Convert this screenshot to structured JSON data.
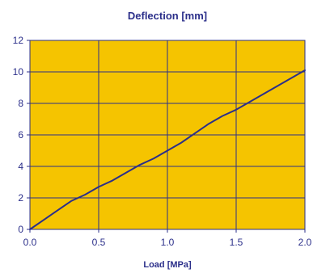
{
  "chart_data": {
    "type": "line",
    "title": "Deflection [mm]",
    "xlabel": "Load [MPa]",
    "ylabel": "",
    "xlim": [
      0,
      2.0
    ],
    "ylim": [
      0,
      12
    ],
    "x_ticks": [
      "0.0",
      "0.5",
      "1.0",
      "1.5",
      "2.0"
    ],
    "y_ticks": [
      "0",
      "2",
      "4",
      "6",
      "8",
      "10",
      "12"
    ],
    "grid": true,
    "legend": "none",
    "colors": {
      "plot_background": "#f5c400",
      "grid": "#2b2f8a",
      "line": "#2b2f8a",
      "text": "#2b2f8a",
      "axis": "#2b2f8a"
    },
    "series": [
      {
        "values": [
          [
            0.0,
            0.0
          ],
          [
            0.1,
            0.6
          ],
          [
            0.2,
            1.2
          ],
          [
            0.3,
            1.8
          ],
          [
            0.4,
            2.2
          ],
          [
            0.5,
            2.7
          ],
          [
            0.6,
            3.1
          ],
          [
            0.7,
            3.6
          ],
          [
            0.8,
            4.1
          ],
          [
            0.9,
            4.5
          ],
          [
            1.0,
            5.0
          ],
          [
            1.1,
            5.5
          ],
          [
            1.2,
            6.1
          ],
          [
            1.3,
            6.7
          ],
          [
            1.4,
            7.2
          ],
          [
            1.5,
            7.6
          ],
          [
            1.6,
            8.1
          ],
          [
            1.7,
            8.6
          ],
          [
            1.8,
            9.1
          ],
          [
            1.9,
            9.6
          ],
          [
            2.0,
            10.1
          ]
        ]
      }
    ]
  }
}
